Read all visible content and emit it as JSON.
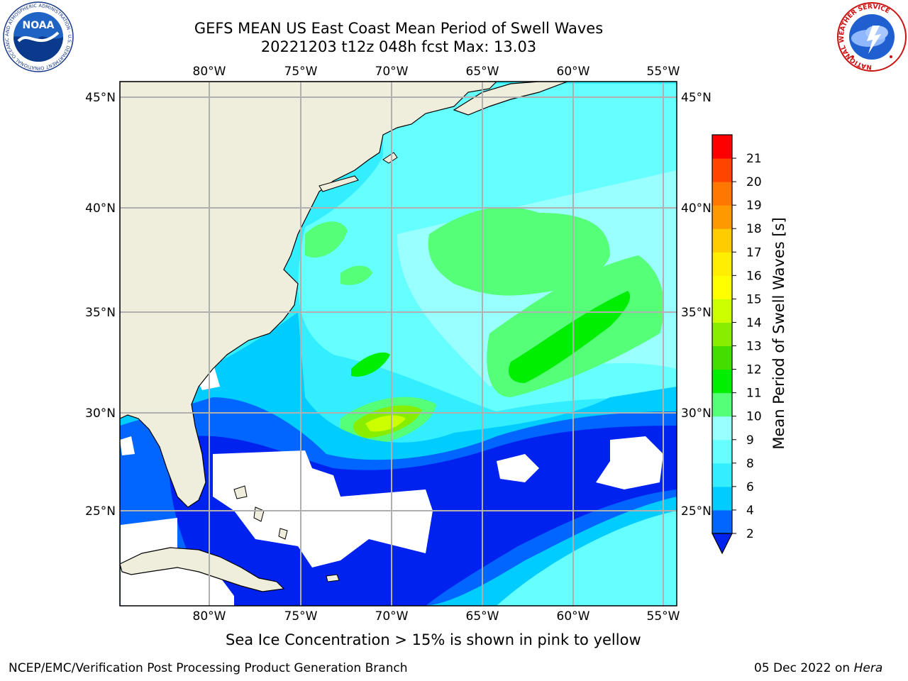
{
  "title": {
    "line1": "GEFS MEAN US East Coast Mean Period of Swell Waves",
    "line2": "20221203 t12z 048h fcst   Max: 13.03"
  },
  "map": {
    "lon_ticks": [
      "80°W",
      "75°W",
      "70°W",
      "65°W",
      "60°W",
      "55°W"
    ],
    "lat_ticks": [
      "45°N",
      "40°N",
      "35°N",
      "30°N",
      "25°N"
    ],
    "land_color": "#efeedd",
    "missing_color": "#ffffff",
    "grid_color": "#b0b0b0"
  },
  "colorbar": {
    "label": "Mean Period of Swell Waves [s]",
    "ticks": [
      "2",
      "4",
      "6",
      "8",
      "9",
      "10",
      "11",
      "12",
      "13",
      "14",
      "15",
      "16",
      "17",
      "18",
      "19",
      "20",
      "21"
    ],
    "colors": [
      "#0066ff",
      "#00ccff",
      "#33eeff",
      "#66ffff",
      "#99ffff",
      "#55ff77",
      "#00ee00",
      "#44dd00",
      "#88ee00",
      "#ccff00",
      "#ffff00",
      "#ffee00",
      "#ffcc00",
      "#ff9900",
      "#ff7700",
      "#ff4400",
      "#ff0000"
    ],
    "under_color": "#0022ee"
  },
  "subtitle": "Sea Ice Concentration > 15% is shown in pink to yellow",
  "footer": {
    "left": "NCEP/EMC/Verification Post Processing Product Generation Branch",
    "right_prefix": "05 Dec 2022 on ",
    "right_host": "Hera"
  },
  "logos": {
    "noaa_text": "NOAA",
    "noaa_ring": "NATIONAL OCEANIC AND ATMOSPHERIC ADMINISTRATION · U.S. DEPARTMENT OF COMMERCE",
    "nws_ring": "NATIONAL WEATHER SERVICE"
  }
}
